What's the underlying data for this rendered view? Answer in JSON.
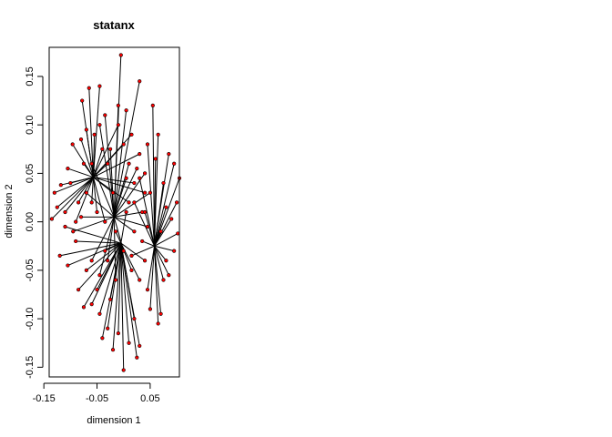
{
  "chart_data": {
    "type": "scatter",
    "title": "statanx",
    "xlabel": "dimension 1",
    "ylabel": "dimension 2",
    "xlim": [
      -0.14,
      0.105
    ],
    "ylim": [
      -0.16,
      0.18
    ],
    "x_ticks": [
      -0.15,
      -0.05,
      0.05
    ],
    "y_ticks": [
      -0.15,
      -0.1,
      -0.05,
      0.0,
      0.05,
      0.1,
      0.15
    ],
    "x_tick_labels": [
      "-0.15",
      "-0.05",
      "0.05"
    ],
    "y_tick_labels": [
      "-0.15",
      "-0.10",
      "-0.05",
      "0.00",
      "0.05",
      "0.10",
      "0.15"
    ],
    "grid": false,
    "legend": "none",
    "colors": {
      "point": "#ff0000",
      "line": "#000000"
    },
    "centers": [
      {
        "x": -0.057,
        "y": 0.046
      },
      {
        "x": -0.018,
        "y": 0.005
      },
      {
        "x": -0.005,
        "y": -0.022
      },
      {
        "x": 0.058,
        "y": -0.025
      }
    ],
    "points": [
      {
        "c": 0,
        "x": -0.096,
        "y": 0.08
      },
      {
        "c": 0,
        "x": -0.105,
        "y": 0.055
      },
      {
        "c": 0,
        "x": -0.118,
        "y": 0.038
      },
      {
        "c": 0,
        "x": -0.13,
        "y": 0.03
      },
      {
        "c": 0,
        "x": -0.125,
        "y": 0.015
      },
      {
        "c": 0,
        "x": -0.135,
        "y": 0.003
      },
      {
        "c": 0,
        "x": -0.11,
        "y": 0.01
      },
      {
        "c": 0,
        "x": -0.09,
        "y": 0.0
      },
      {
        "c": 0,
        "x": -0.08,
        "y": 0.085
      },
      {
        "c": 0,
        "x": -0.07,
        "y": 0.095
      },
      {
        "c": 0,
        "x": -0.065,
        "y": 0.138
      },
      {
        "c": 0,
        "x": -0.078,
        "y": 0.125
      },
      {
        "c": 0,
        "x": -0.045,
        "y": 0.14
      },
      {
        "c": 0,
        "x": -0.055,
        "y": 0.09
      },
      {
        "c": 0,
        "x": -0.04,
        "y": 0.075
      },
      {
        "c": 0,
        "x": -0.03,
        "y": 0.06
      },
      {
        "c": 0,
        "x": -0.01,
        "y": 0.1
      },
      {
        "c": 0,
        "x": 0.0,
        "y": 0.08
      },
      {
        "c": 0,
        "x": 0.015,
        "y": 0.09
      },
      {
        "c": 0,
        "x": 0.03,
        "y": 0.07
      },
      {
        "c": 0,
        "x": 0.02,
        "y": 0.04
      },
      {
        "c": 0,
        "x": 0.04,
        "y": 0.03
      },
      {
        "c": 0,
        "x": 0.01,
        "y": 0.02
      },
      {
        "c": 0,
        "x": -0.02,
        "y": 0.03
      },
      {
        "c": 0,
        "x": -0.085,
        "y": 0.02
      },
      {
        "c": 0,
        "x": -0.1,
        "y": 0.04
      },
      {
        "c": 0,
        "x": -0.075,
        "y": 0.06
      },
      {
        "c": 0,
        "x": -0.06,
        "y": 0.02
      },
      {
        "c": 0,
        "x": -0.05,
        "y": 0.01
      },
      {
        "c": 0,
        "x": -0.035,
        "y": 0.0
      },
      {
        "c": 1,
        "x": -0.005,
        "y": 0.172
      },
      {
        "c": 1,
        "x": -0.01,
        "y": 0.12
      },
      {
        "c": 1,
        "x": 0.005,
        "y": 0.115
      },
      {
        "c": 1,
        "x": 0.03,
        "y": 0.145
      },
      {
        "c": 1,
        "x": -0.035,
        "y": 0.11
      },
      {
        "c": 1,
        "x": -0.045,
        "y": 0.1
      },
      {
        "c": 1,
        "x": 0.01,
        "y": 0.06
      },
      {
        "c": 1,
        "x": 0.025,
        "y": 0.055
      },
      {
        "c": 1,
        "x": 0.04,
        "y": 0.05
      },
      {
        "c": 1,
        "x": 0.05,
        "y": 0.03
      },
      {
        "c": 1,
        "x": 0.005,
        "y": 0.045
      },
      {
        "c": 1,
        "x": -0.06,
        "y": 0.06
      },
      {
        "c": 1,
        "x": -0.07,
        "y": 0.03
      },
      {
        "c": 1,
        "x": -0.08,
        "y": 0.005
      },
      {
        "c": 1,
        "x": -0.095,
        "y": -0.01
      },
      {
        "c": 1,
        "x": -0.06,
        "y": -0.04
      },
      {
        "c": 1,
        "x": -0.045,
        "y": -0.055
      },
      {
        "c": 1,
        "x": -0.03,
        "y": -0.04
      },
      {
        "c": 1,
        "x": -0.015,
        "y": -0.06
      },
      {
        "c": 1,
        "x": 0.0,
        "y": -0.03
      },
      {
        "c": 1,
        "x": 0.02,
        "y": -0.01
      },
      {
        "c": 1,
        "x": 0.035,
        "y": 0.01
      },
      {
        "c": 1,
        "x": 0.045,
        "y": -0.005
      },
      {
        "c": 1,
        "x": -0.025,
        "y": 0.075
      },
      {
        "c": 2,
        "x": -0.12,
        "y": -0.035
      },
      {
        "c": 2,
        "x": -0.105,
        "y": -0.045
      },
      {
        "c": 2,
        "x": -0.085,
        "y": -0.07
      },
      {
        "c": 2,
        "x": -0.075,
        "y": -0.088
      },
      {
        "c": 2,
        "x": -0.06,
        "y": -0.085
      },
      {
        "c": 2,
        "x": -0.045,
        "y": -0.095
      },
      {
        "c": 2,
        "x": -0.04,
        "y": -0.12
      },
      {
        "c": 2,
        "x": -0.03,
        "y": -0.11
      },
      {
        "c": 2,
        "x": -0.02,
        "y": -0.132
      },
      {
        "c": 2,
        "x": -0.01,
        "y": -0.115
      },
      {
        "c": 2,
        "x": 0.0,
        "y": -0.153
      },
      {
        "c": 2,
        "x": 0.01,
        "y": -0.125
      },
      {
        "c": 2,
        "x": 0.02,
        "y": -0.1
      },
      {
        "c": 2,
        "x": 0.025,
        "y": -0.14
      },
      {
        "c": 2,
        "x": 0.03,
        "y": -0.128
      },
      {
        "c": 2,
        "x": -0.05,
        "y": -0.07
      },
      {
        "c": 2,
        "x": -0.07,
        "y": -0.05
      },
      {
        "c": 2,
        "x": -0.09,
        "y": -0.02
      },
      {
        "c": 2,
        "x": -0.11,
        "y": -0.005
      },
      {
        "c": 2,
        "x": -0.035,
        "y": -0.03
      },
      {
        "c": 2,
        "x": -0.015,
        "y": -0.01
      },
      {
        "c": 2,
        "x": 0.005,
        "y": 0.01
      },
      {
        "c": 2,
        "x": 0.015,
        "y": -0.05
      },
      {
        "c": 2,
        "x": 0.03,
        "y": -0.06
      },
      {
        "c": 2,
        "x": 0.04,
        "y": -0.04
      },
      {
        "c": 2,
        "x": -0.025,
        "y": -0.08
      },
      {
        "c": 3,
        "x": 0.085,
        "y": 0.07
      },
      {
        "c": 3,
        "x": 0.095,
        "y": 0.06
      },
      {
        "c": 3,
        "x": 0.105,
        "y": 0.045
      },
      {
        "c": 3,
        "x": 0.1,
        "y": 0.02
      },
      {
        "c": 3,
        "x": 0.102,
        "y": -0.012
      },
      {
        "c": 3,
        "x": 0.095,
        "y": -0.03
      },
      {
        "c": 3,
        "x": 0.09,
        "y": 0.003
      },
      {
        "c": 3,
        "x": 0.08,
        "y": -0.04
      },
      {
        "c": 3,
        "x": 0.085,
        "y": -0.055
      },
      {
        "c": 3,
        "x": 0.075,
        "y": -0.06
      },
      {
        "c": 3,
        "x": 0.07,
        "y": -0.095
      },
      {
        "c": 3,
        "x": 0.065,
        "y": -0.105
      },
      {
        "c": 3,
        "x": 0.05,
        "y": -0.09
      },
      {
        "c": 3,
        "x": 0.045,
        "y": -0.07
      },
      {
        "c": 3,
        "x": 0.06,
        "y": 0.065
      },
      {
        "c": 3,
        "x": 0.065,
        "y": 0.09
      },
      {
        "c": 3,
        "x": 0.055,
        "y": 0.12
      },
      {
        "c": 3,
        "x": 0.045,
        "y": 0.08
      },
      {
        "c": 3,
        "x": 0.075,
        "y": 0.04
      },
      {
        "c": 3,
        "x": 0.04,
        "y": 0.01
      },
      {
        "c": 3,
        "x": 0.035,
        "y": -0.02
      },
      {
        "c": 3,
        "x": 0.03,
        "y": 0.045
      },
      {
        "c": 3,
        "x": 0.02,
        "y": 0.02
      },
      {
        "c": 3,
        "x": 0.015,
        "y": -0.035
      },
      {
        "c": 3,
        "x": 0.08,
        "y": 0.015
      },
      {
        "c": 3,
        "x": 0.07,
        "y": -0.01
      }
    ]
  }
}
